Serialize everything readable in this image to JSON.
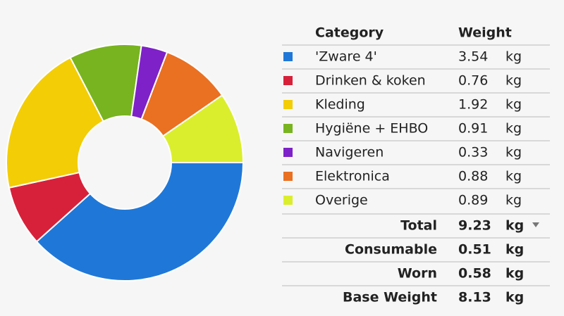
{
  "chart_data": {
    "type": "pie",
    "donut": true,
    "categories": [
      "'Zware 4'",
      "Drinken & koken",
      "Kleding",
      "Hygiëne + EHBO",
      "Navigeren",
      "Elektronica",
      "Overige"
    ],
    "values": [
      3.54,
      0.76,
      1.92,
      0.91,
      0.33,
      0.88,
      0.89
    ],
    "colors": [
      "#1f78d8",
      "#d7213a",
      "#f3cd05",
      "#78b41f",
      "#7e21c8",
      "#ea7022",
      "#dbee2d"
    ],
    "header": [
      "Category",
      "Weight"
    ],
    "unit": "kg"
  },
  "summary": [
    {
      "label": "Total",
      "value": 9.23
    },
    {
      "label": "Consumable",
      "value": 0.51
    },
    {
      "label": "Worn",
      "value": 0.58
    },
    {
      "label": "Base Weight",
      "value": 8.13
    }
  ]
}
